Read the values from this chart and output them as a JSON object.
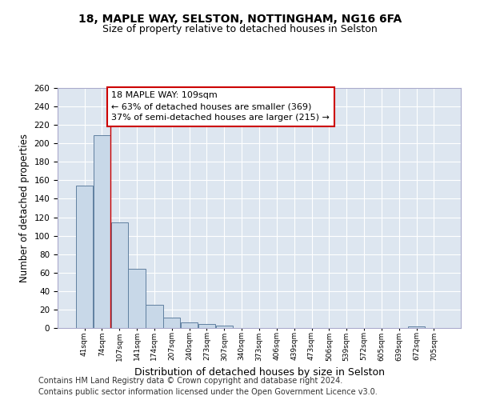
{
  "title1": "18, MAPLE WAY, SELSTON, NOTTINGHAM, NG16 6FA",
  "title2": "Size of property relative to detached houses in Selston",
  "xlabel": "Distribution of detached houses by size in Selston",
  "ylabel": "Number of detached properties",
  "footer1": "Contains HM Land Registry data © Crown copyright and database right 2024.",
  "footer2": "Contains public sector information licensed under the Open Government Licence v3.0.",
  "bar_labels": [
    "41sqm",
    "74sqm",
    "107sqm",
    "141sqm",
    "174sqm",
    "207sqm",
    "240sqm",
    "273sqm",
    "307sqm",
    "340sqm",
    "373sqm",
    "406sqm",
    "439sqm",
    "473sqm",
    "506sqm",
    "539sqm",
    "572sqm",
    "605sqm",
    "639sqm",
    "672sqm",
    "705sqm"
  ],
  "bar_values": [
    154,
    209,
    114,
    64,
    25,
    11,
    6,
    4,
    3,
    0,
    0,
    0,
    0,
    0,
    0,
    0,
    0,
    0,
    0,
    2,
    0
  ],
  "bar_color": "#c8d8e8",
  "bar_edge_color": "#6080a0",
  "bg_color": "#dde6f0",
  "grid_color": "#ffffff",
  "vline_x": 1.5,
  "vline_color": "#cc0000",
  "annotation_text": "18 MAPLE WAY: 109sqm\n← 63% of detached houses are smaller (369)\n37% of semi-detached houses are larger (215) →",
  "annotation_box_color": "#cc0000",
  "ylim": [
    0,
    260
  ],
  "yticks": [
    0,
    20,
    40,
    60,
    80,
    100,
    120,
    140,
    160,
    180,
    200,
    220,
    240,
    260
  ],
  "title_fontsize": 10,
  "subtitle_fontsize": 9,
  "annotation_fontsize": 8,
  "xlabel_fontsize": 9,
  "ylabel_fontsize": 8.5,
  "footer_fontsize": 7
}
